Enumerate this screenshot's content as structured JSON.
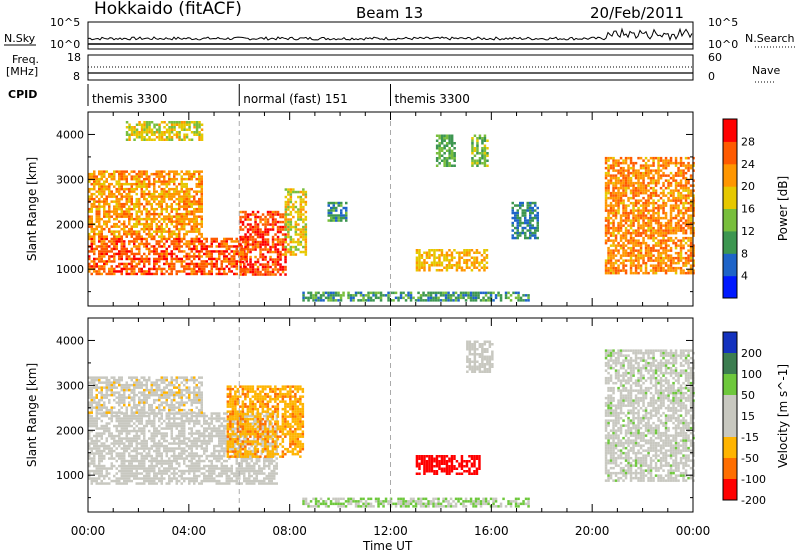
{
  "header": {
    "station": "Hokkaido (fitACF)",
    "beam": "Beam 13",
    "date": "20/Feb/2011"
  },
  "strip_labels": {
    "nsky": "N.Sky",
    "nsearch": "N.Search",
    "freq": "Freq.",
    "freq_unit": "[MHz]",
    "nave": "Nave",
    "cpid": "CPID",
    "nsky_ticks": [
      "10^5",
      "10^0"
    ],
    "nsearch_ticks": [
      "10^5",
      "10^0"
    ],
    "freq_ticks": [
      "18",
      "8"
    ],
    "nave_ticks": [
      "60",
      "0"
    ]
  },
  "cpid_segments": [
    {
      "start_h": 0,
      "end_h": 6,
      "label": "themis 3300"
    },
    {
      "start_h": 6,
      "end_h": 12,
      "label": "normal (fast) 151"
    },
    {
      "start_h": 12,
      "end_h": 24,
      "label": "themis 3300"
    }
  ],
  "time_axis": {
    "label": "Time UT",
    "ticks": [
      "00:00",
      "04:00",
      "08:00",
      "12:00",
      "16:00",
      "20:00",
      "00:00"
    ],
    "range_h": [
      0,
      24
    ]
  },
  "chart_data": [
    {
      "type": "heatmap",
      "title": "",
      "xlabel": "Time UT",
      "ylabel": "Slant Range [km]",
      "ylim": [
        180,
        4500
      ],
      "yticks": [
        1000,
        2000,
        3000,
        4000
      ],
      "colorbar_label": "Power [dB]",
      "colorbar_ticks": [
        4,
        8,
        12,
        16,
        20,
        24,
        28
      ],
      "colorscale": [
        "#0019ff",
        "#1e64c8",
        "#3c9650",
        "#78be3c",
        "#e6c800",
        "#ff9600",
        "#ff5a00",
        "#ff0000"
      ],
      "dashed_time_markers_h": [
        6,
        12
      ],
      "regions": [
        {
          "t": [
            0,
            6.3
          ],
          "r": [
            900,
            1700
          ],
          "level": 26
        },
        {
          "t": [
            0,
            4.5
          ],
          "r": [
            1700,
            3200
          ],
          "level": 22
        },
        {
          "t": [
            6,
            7.8
          ],
          "r": [
            900,
            2300
          ],
          "level": 27
        },
        {
          "t": [
            7.8,
            8.6
          ],
          "r": [
            1300,
            2800
          ],
          "level": 18
        },
        {
          "t": [
            1.5,
            4.5
          ],
          "r": [
            3900,
            4300
          ],
          "level": 17
        },
        {
          "t": [
            9.5,
            10.2
          ],
          "r": [
            2100,
            2500
          ],
          "level": 10
        },
        {
          "t": [
            13,
            15.8
          ],
          "r": [
            1000,
            1450
          ],
          "level": 20
        },
        {
          "t": [
            13.8,
            14.5
          ],
          "r": [
            3300,
            4000
          ],
          "level": 12
        },
        {
          "t": [
            15.2,
            15.8
          ],
          "r": [
            3300,
            4000
          ],
          "level": 14
        },
        {
          "t": [
            16.8,
            17.8
          ],
          "r": [
            1700,
            2500
          ],
          "level": 8
        },
        {
          "t": [
            20.5,
            24
          ],
          "r": [
            900,
            3500
          ],
          "level": 23
        },
        {
          "t": [
            8.5,
            17.5
          ],
          "r": [
            300,
            500
          ],
          "level": 10
        }
      ]
    },
    {
      "type": "heatmap",
      "title": "",
      "xlabel": "Time UT",
      "ylabel": "Slant Range [km]",
      "ylim": [
        180,
        4500
      ],
      "yticks": [
        1000,
        2000,
        3000,
        4000
      ],
      "colorbar_label": "Velocity [m s^-1]",
      "colorbar_ticks": [
        200,
        100,
        50,
        15,
        -15,
        -50,
        -100,
        -200
      ],
      "colorscale": [
        "#1432be",
        "#3c7d50",
        "#6ec83c",
        "#c8c8c0",
        "#c8c8c0",
        "#ffb400",
        "#ff6e00",
        "#ff0000"
      ],
      "dashed_time_markers_h": [
        6,
        12
      ],
      "regions": [
        {
          "t": [
            0,
            7.5
          ],
          "r": [
            800,
            2400
          ],
          "level": 0
        },
        {
          "t": [
            0,
            4.5
          ],
          "r": [
            2400,
            3200
          ],
          "level": -10
        },
        {
          "t": [
            5.5,
            8.5
          ],
          "r": [
            1400,
            3000
          ],
          "level": -60
        },
        {
          "t": [
            13,
            15.5
          ],
          "r": [
            1050,
            1450
          ],
          "level": -180
        },
        {
          "t": [
            20.5,
            24
          ],
          "r": [
            900,
            3800
          ],
          "level": 5
        },
        {
          "t": [
            15,
            16
          ],
          "r": [
            3300,
            4000
          ],
          "level": 0
        },
        {
          "t": [
            8.5,
            17.5
          ],
          "r": [
            300,
            500
          ],
          "level": 30
        }
      ]
    }
  ]
}
